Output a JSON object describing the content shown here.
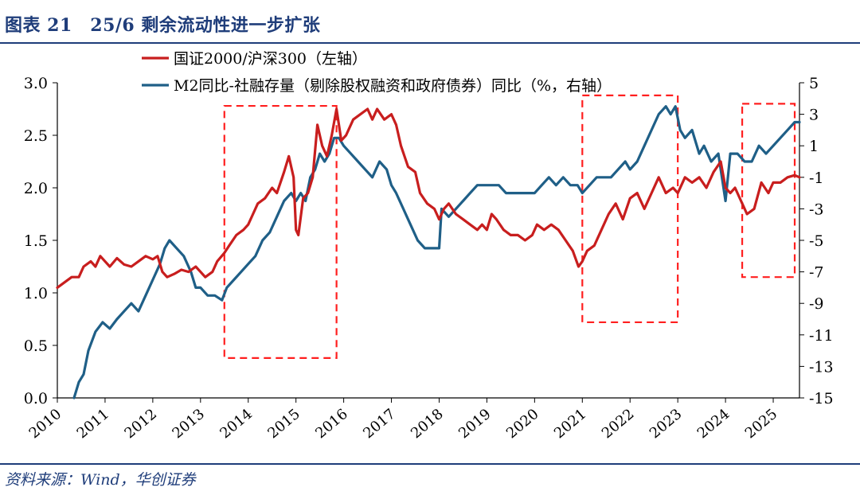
{
  "header": {
    "title": "图表 21　25/6 剩余流动性进一步扩张"
  },
  "footer": {
    "source": "资料来源：Wind，华创证券"
  },
  "colors": {
    "title": "#1f3d7a",
    "series1": "#c81e1e",
    "series2": "#1f5f87",
    "highlight": "#ff1f1f"
  },
  "chart_data": {
    "type": "line",
    "title": "25/6 剩余流动性进一步扩张",
    "x_tick_labels": [
      "2010",
      "2011",
      "2012",
      "2013",
      "2014",
      "2015",
      "2016",
      "2017",
      "2018",
      "2019",
      "2020",
      "2021",
      "2022",
      "2023",
      "2024",
      "2025"
    ],
    "x_range": [
      2010.0,
      2025.55
    ],
    "y_left": {
      "range": [
        0,
        3.0
      ],
      "tick_labels": [
        "0.0",
        "0.5",
        "1.0",
        "1.5",
        "2.0",
        "2.5",
        "3.0"
      ],
      "tick_values": [
        0,
        0.5,
        1.0,
        1.5,
        2.0,
        2.5,
        3.0
      ]
    },
    "y_right": {
      "range": [
        -15,
        5
      ],
      "tick_labels": [
        "-15",
        "-13",
        "-11",
        "-9",
        "-7",
        "-5",
        "-3",
        "-1",
        "1",
        "3",
        "5"
      ],
      "tick_values": [
        -15,
        -13,
        -11,
        -9,
        -7,
        -5,
        -3,
        -1,
        1,
        3,
        5
      ]
    },
    "legend": {
      "placement": "top-center"
    },
    "series": [
      {
        "name": "国证2000/沪深300（左轴）",
        "axis": "left",
        "color": "#c81e1e",
        "points": [
          [
            2010.0,
            1.05
          ],
          [
            2010.15,
            1.1
          ],
          [
            2010.3,
            1.15
          ],
          [
            2010.45,
            1.15
          ],
          [
            2010.55,
            1.25
          ],
          [
            2010.7,
            1.3
          ],
          [
            2010.8,
            1.25
          ],
          [
            2010.9,
            1.35
          ],
          [
            2011.0,
            1.3
          ],
          [
            2011.1,
            1.25
          ],
          [
            2011.25,
            1.33
          ],
          [
            2011.4,
            1.27
          ],
          [
            2011.55,
            1.25
          ],
          [
            2011.7,
            1.3
          ],
          [
            2011.85,
            1.35
          ],
          [
            2012.0,
            1.32
          ],
          [
            2012.1,
            1.35
          ],
          [
            2012.2,
            1.2
          ],
          [
            2012.3,
            1.15
          ],
          [
            2012.45,
            1.18
          ],
          [
            2012.6,
            1.22
          ],
          [
            2012.75,
            1.2
          ],
          [
            2012.9,
            1.25
          ],
          [
            2013.0,
            1.2
          ],
          [
            2013.1,
            1.15
          ],
          [
            2013.25,
            1.2
          ],
          [
            2013.35,
            1.3
          ],
          [
            2013.5,
            1.38
          ],
          [
            2013.6,
            1.45
          ],
          [
            2013.75,
            1.55
          ],
          [
            2013.9,
            1.6
          ],
          [
            2014.0,
            1.65
          ],
          [
            2014.1,
            1.75
          ],
          [
            2014.2,
            1.85
          ],
          [
            2014.35,
            1.9
          ],
          [
            2014.5,
            2.0
          ],
          [
            2014.6,
            1.95
          ],
          [
            2014.75,
            2.15
          ],
          [
            2014.85,
            2.3
          ],
          [
            2014.95,
            2.1
          ],
          [
            2015.0,
            1.6
          ],
          [
            2015.05,
            1.55
          ],
          [
            2015.15,
            1.9
          ],
          [
            2015.25,
            1.95
          ],
          [
            2015.35,
            2.1
          ],
          [
            2015.45,
            2.6
          ],
          [
            2015.55,
            2.4
          ],
          [
            2015.65,
            2.3
          ],
          [
            2015.75,
            2.5
          ],
          [
            2015.85,
            2.75
          ],
          [
            2015.95,
            2.45
          ],
          [
            2016.05,
            2.5
          ],
          [
            2016.2,
            2.65
          ],
          [
            2016.35,
            2.7
          ],
          [
            2016.5,
            2.75
          ],
          [
            2016.6,
            2.65
          ],
          [
            2016.7,
            2.75
          ],
          [
            2016.85,
            2.65
          ],
          [
            2017.0,
            2.7
          ],
          [
            2017.1,
            2.6
          ],
          [
            2017.2,
            2.4
          ],
          [
            2017.35,
            2.2
          ],
          [
            2017.5,
            2.15
          ],
          [
            2017.6,
            1.95
          ],
          [
            2017.75,
            1.85
          ],
          [
            2017.9,
            1.8
          ],
          [
            2018.0,
            1.7
          ],
          [
            2018.1,
            1.8
          ],
          [
            2018.2,
            1.85
          ],
          [
            2018.35,
            1.75
          ],
          [
            2018.5,
            1.7
          ],
          [
            2018.65,
            1.65
          ],
          [
            2018.8,
            1.6
          ],
          [
            2018.9,
            1.65
          ],
          [
            2019.0,
            1.6
          ],
          [
            2019.1,
            1.75
          ],
          [
            2019.2,
            1.7
          ],
          [
            2019.35,
            1.6
          ],
          [
            2019.5,
            1.55
          ],
          [
            2019.65,
            1.55
          ],
          [
            2019.8,
            1.5
          ],
          [
            2019.95,
            1.55
          ],
          [
            2020.05,
            1.65
          ],
          [
            2020.2,
            1.6
          ],
          [
            2020.35,
            1.65
          ],
          [
            2020.5,
            1.6
          ],
          [
            2020.65,
            1.5
          ],
          [
            2020.8,
            1.4
          ],
          [
            2020.92,
            1.25
          ],
          [
            2021.0,
            1.3
          ],
          [
            2021.1,
            1.4
          ],
          [
            2021.25,
            1.45
          ],
          [
            2021.4,
            1.6
          ],
          [
            2021.55,
            1.75
          ],
          [
            2021.7,
            1.85
          ],
          [
            2021.85,
            1.7
          ],
          [
            2022.0,
            1.9
          ],
          [
            2022.15,
            1.95
          ],
          [
            2022.3,
            1.8
          ],
          [
            2022.45,
            1.95
          ],
          [
            2022.6,
            2.1
          ],
          [
            2022.75,
            1.95
          ],
          [
            2022.9,
            2.0
          ],
          [
            2023.0,
            1.95
          ],
          [
            2023.15,
            2.1
          ],
          [
            2023.3,
            2.05
          ],
          [
            2023.45,
            2.1
          ],
          [
            2023.6,
            2.0
          ],
          [
            2023.75,
            2.15
          ],
          [
            2023.9,
            2.25
          ],
          [
            2024.0,
            2.0
          ],
          [
            2024.1,
            1.95
          ],
          [
            2024.2,
            2.0
          ],
          [
            2024.35,
            1.85
          ],
          [
            2024.45,
            1.75
          ],
          [
            2024.6,
            1.8
          ],
          [
            2024.75,
            2.05
          ],
          [
            2024.9,
            1.95
          ],
          [
            2025.0,
            2.05
          ],
          [
            2025.15,
            2.05
          ],
          [
            2025.3,
            2.1
          ],
          [
            2025.45,
            2.12
          ],
          [
            2025.55,
            2.1
          ]
        ]
      },
      {
        "name": "M2同比-社融存量（剔除股权融资和政府债券）同比（%，右轴）",
        "axis": "right",
        "color": "#1f5f87",
        "points": [
          [
            2010.35,
            -15.0
          ],
          [
            2010.45,
            -14.0
          ],
          [
            2010.55,
            -13.5
          ],
          [
            2010.65,
            -12.0
          ],
          [
            2010.8,
            -10.8
          ],
          [
            2010.95,
            -10.2
          ],
          [
            2011.1,
            -10.6
          ],
          [
            2011.25,
            -10.0
          ],
          [
            2011.4,
            -9.5
          ],
          [
            2011.55,
            -9.0
          ],
          [
            2011.7,
            -9.5
          ],
          [
            2011.85,
            -8.5
          ],
          [
            2012.0,
            -7.5
          ],
          [
            2012.15,
            -6.5
          ],
          [
            2012.25,
            -5.5
          ],
          [
            2012.35,
            -5.0
          ],
          [
            2012.5,
            -5.5
          ],
          [
            2012.65,
            -6.0
          ],
          [
            2012.8,
            -7.0
          ],
          [
            2012.9,
            -8.0
          ],
          [
            2013.0,
            -8.0
          ],
          [
            2013.15,
            -8.5
          ],
          [
            2013.3,
            -8.5
          ],
          [
            2013.45,
            -8.8
          ],
          [
            2013.55,
            -8.0
          ],
          [
            2013.7,
            -7.5
          ],
          [
            2013.85,
            -7.0
          ],
          [
            2014.0,
            -6.5
          ],
          [
            2014.15,
            -6.0
          ],
          [
            2014.3,
            -5.0
          ],
          [
            2014.45,
            -4.5
          ],
          [
            2014.6,
            -3.5
          ],
          [
            2014.75,
            -2.5
          ],
          [
            2014.9,
            -2.0
          ],
          [
            2015.0,
            -2.5
          ],
          [
            2015.1,
            -2.0
          ],
          [
            2015.2,
            -2.5
          ],
          [
            2015.3,
            -1.0
          ],
          [
            2015.4,
            -0.5
          ],
          [
            2015.5,
            0.5
          ],
          [
            2015.6,
            0.0
          ],
          [
            2015.7,
            0.5
          ],
          [
            2015.8,
            1.5
          ],
          [
            2015.9,
            1.5
          ],
          [
            2016.0,
            1.0
          ],
          [
            2016.15,
            0.5
          ],
          [
            2016.3,
            0.0
          ],
          [
            2016.45,
            -0.5
          ],
          [
            2016.6,
            -1.0
          ],
          [
            2016.75,
            0.0
          ],
          [
            2016.9,
            -0.5
          ],
          [
            2017.0,
            -1.5
          ],
          [
            2017.1,
            -2.0
          ],
          [
            2017.25,
            -3.0
          ],
          [
            2017.4,
            -4.0
          ],
          [
            2017.55,
            -5.0
          ],
          [
            2017.7,
            -5.5
          ],
          [
            2017.85,
            -5.5
          ],
          [
            2018.0,
            -5.5
          ],
          [
            2018.05,
            -3.0
          ],
          [
            2018.2,
            -3.5
          ],
          [
            2018.35,
            -3.0
          ],
          [
            2018.5,
            -2.5
          ],
          [
            2018.65,
            -2.0
          ],
          [
            2018.8,
            -1.5
          ],
          [
            2018.95,
            -1.5
          ],
          [
            2019.1,
            -1.5
          ],
          [
            2019.25,
            -1.5
          ],
          [
            2019.4,
            -2.0
          ],
          [
            2019.55,
            -2.0
          ],
          [
            2019.7,
            -2.0
          ],
          [
            2019.85,
            -2.0
          ],
          [
            2020.0,
            -2.0
          ],
          [
            2020.15,
            -1.5
          ],
          [
            2020.3,
            -1.0
          ],
          [
            2020.45,
            -1.5
          ],
          [
            2020.6,
            -1.0
          ],
          [
            2020.75,
            -1.5
          ],
          [
            2020.9,
            -1.5
          ],
          [
            2021.0,
            -2.0
          ],
          [
            2021.15,
            -1.5
          ],
          [
            2021.3,
            -1.0
          ],
          [
            2021.45,
            -1.0
          ],
          [
            2021.6,
            -1.0
          ],
          [
            2021.75,
            -0.5
          ],
          [
            2021.9,
            0.0
          ],
          [
            2022.0,
            -0.5
          ],
          [
            2022.15,
            0.0
          ],
          [
            2022.3,
            1.0
          ],
          [
            2022.45,
            2.0
          ],
          [
            2022.6,
            3.0
          ],
          [
            2022.75,
            3.5
          ],
          [
            2022.85,
            3.0
          ],
          [
            2022.95,
            3.5
          ],
          [
            2023.05,
            2.0
          ],
          [
            2023.15,
            1.5
          ],
          [
            2023.3,
            2.0
          ],
          [
            2023.45,
            0.5
          ],
          [
            2023.55,
            1.0
          ],
          [
            2023.7,
            0.0
          ],
          [
            2023.85,
            0.5
          ],
          [
            2024.0,
            -2.5
          ],
          [
            2024.1,
            0.5
          ],
          [
            2024.25,
            0.5
          ],
          [
            2024.4,
            0.0
          ],
          [
            2024.55,
            0.0
          ],
          [
            2024.7,
            1.0
          ],
          [
            2024.85,
            0.5
          ],
          [
            2025.0,
            1.0
          ],
          [
            2025.15,
            1.5
          ],
          [
            2025.3,
            2.0
          ],
          [
            2025.45,
            2.5
          ],
          [
            2025.55,
            2.5
          ]
        ]
      }
    ],
    "annotations": [
      {
        "type": "dashed-box",
        "x_range": [
          2013.5,
          2015.85
        ],
        "y_range_left": [
          0.38,
          2.78
        ]
      },
      {
        "type": "dashed-box",
        "x_range": [
          2021.0,
          2023.0
        ],
        "y_range_left": [
          0.72,
          2.88
        ]
      },
      {
        "type": "dashed-box",
        "x_range": [
          2024.35,
          2025.45
        ],
        "y_range_left": [
          1.15,
          2.8
        ]
      }
    ]
  }
}
